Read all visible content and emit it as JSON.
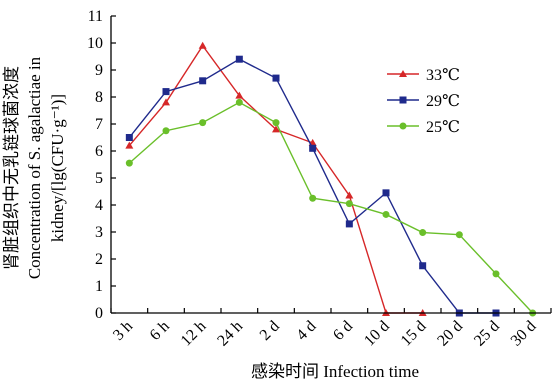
{
  "chart_data": {
    "type": "line",
    "title": "",
    "xlabel": "感染时间 Infection time",
    "ylabel_lines": [
      "肾脏组织中无乳链球菌浓度",
      "Concentration of S. agalactiae in",
      "kidney/[lg(CFU·g⁻¹)]"
    ],
    "ylim": [
      0,
      11
    ],
    "yticks": [
      "0",
      "1",
      "2",
      "3",
      "4",
      "5",
      "6",
      "7",
      "8",
      "9",
      "10",
      "11"
    ],
    "categories": [
      "3 h",
      "6 h",
      "12 h",
      "24 h",
      "2 d",
      "4 d",
      "6 d",
      "10 d",
      "15 d",
      "20 d",
      "25 d",
      "30 d"
    ],
    "legend_position": "top-right",
    "series": [
      {
        "name": "33℃",
        "color": "#d62728",
        "marker": "triangle",
        "values": [
          6.2,
          7.8,
          9.9,
          8.05,
          6.8,
          6.3,
          4.35,
          0,
          0,
          null,
          null,
          null
        ]
      },
      {
        "name": "29℃",
        "color": "#1f2a8c",
        "marker": "square",
        "values": [
          6.5,
          8.2,
          8.6,
          9.4,
          8.7,
          6.1,
          3.3,
          4.45,
          1.75,
          0,
          0,
          null
        ]
      },
      {
        "name": "25℃",
        "color": "#6abf2a",
        "marker": "circle",
        "values": [
          5.55,
          6.75,
          7.05,
          7.8,
          7.05,
          4.25,
          4.05,
          3.65,
          2.98,
          2.9,
          1.45,
          0
        ]
      }
    ]
  }
}
